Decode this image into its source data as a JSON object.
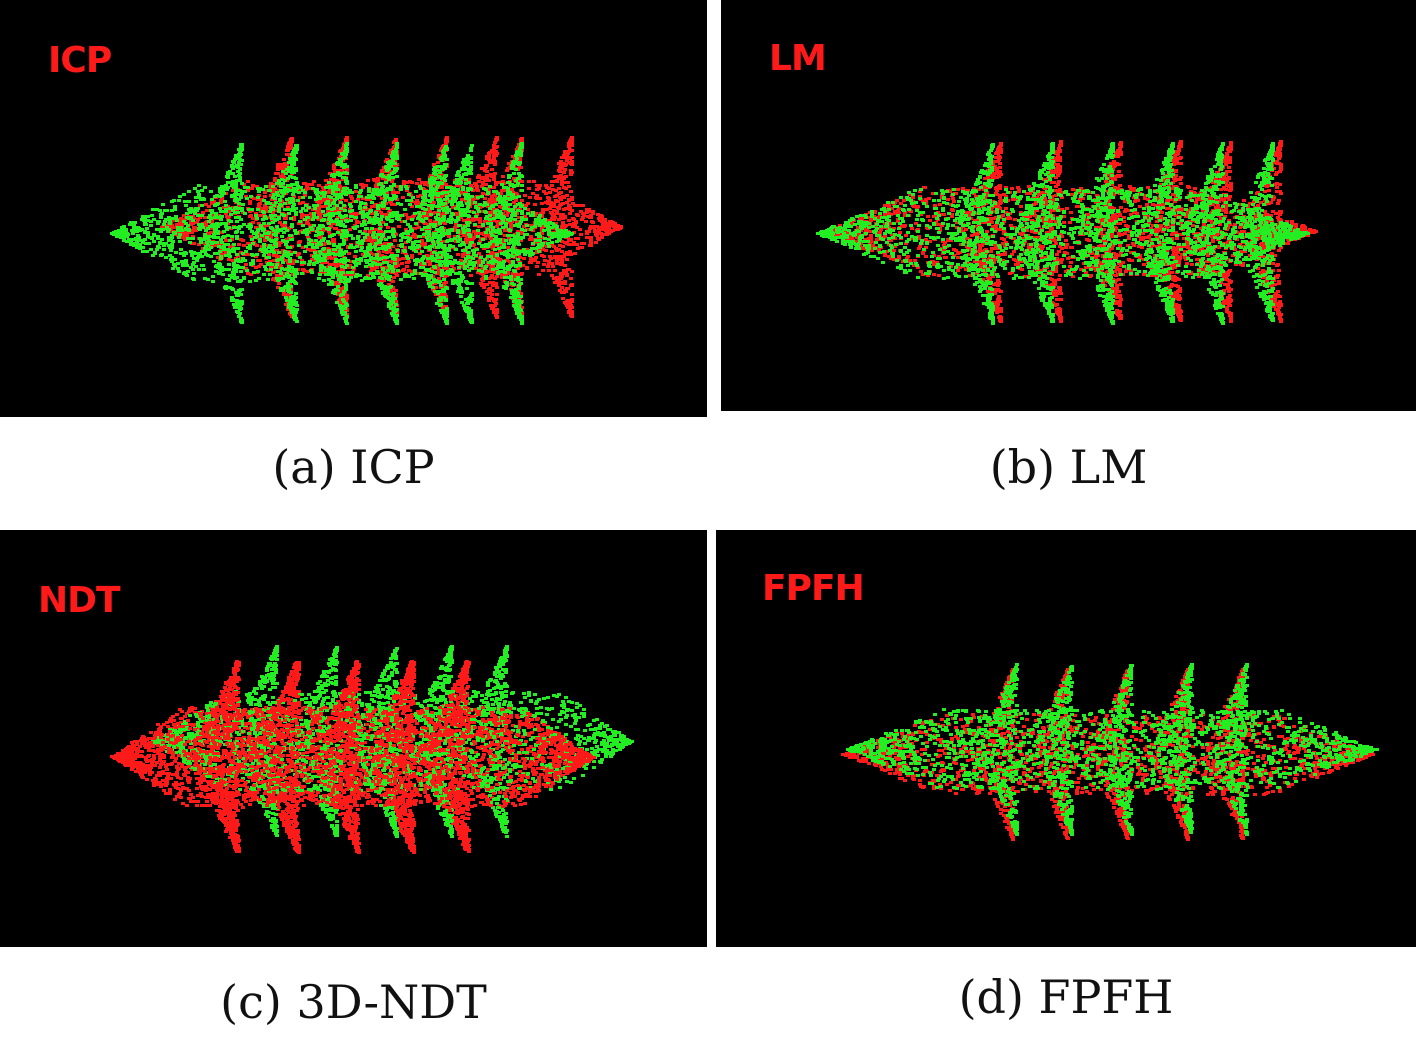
{
  "colors": {
    "background": "#000000",
    "source_cloud": "#ff1a1a",
    "target_cloud": "#22ee22",
    "label": "#ff1a1a"
  },
  "panels": [
    {
      "id": "a",
      "overlay": "ICP",
      "caption": "(a) ICP"
    },
    {
      "id": "b",
      "overlay": "LM",
      "caption": "(b) LM"
    },
    {
      "id": "c",
      "overlay": "NDT",
      "caption": "(c) 3D-NDT"
    },
    {
      "id": "d",
      "overlay": "FPFH",
      "caption": "(d) FPFH"
    }
  ]
}
